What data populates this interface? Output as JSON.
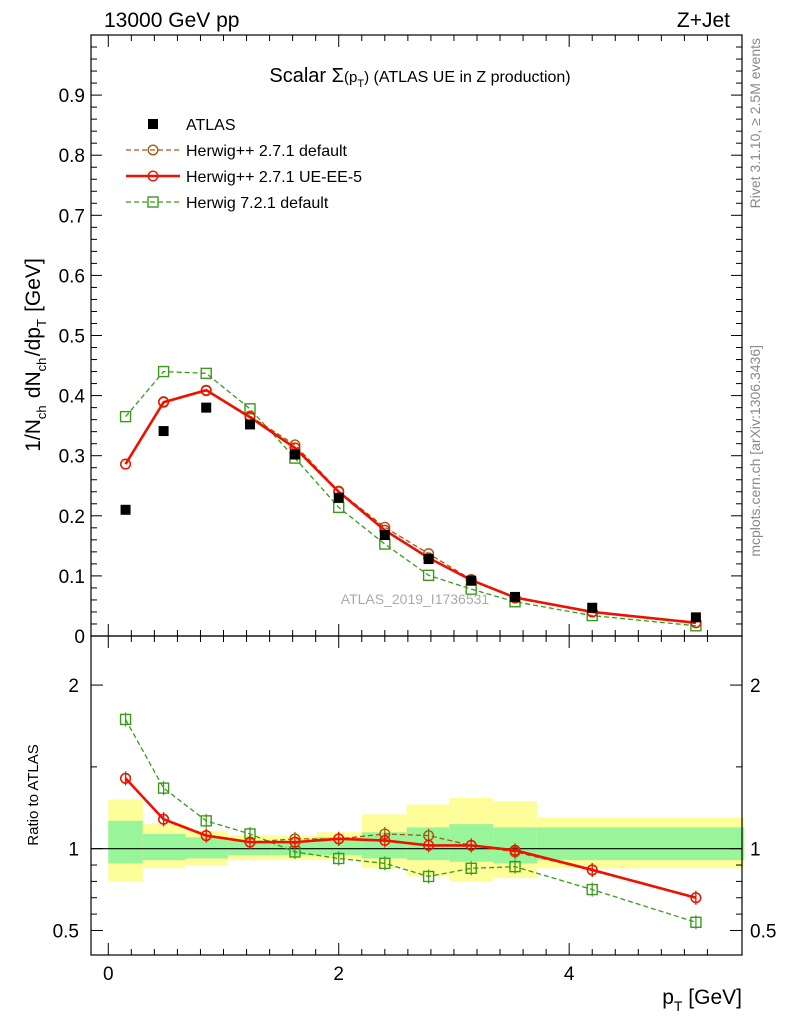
{
  "header": {
    "left": "13000 GeV pp",
    "right": "Z+Jet"
  },
  "side": {
    "rivet": "Rivet 3.1.10, ≥ 2.5M events",
    "mcplots": "mcplots.cern.ch [arXiv:1306.3436]"
  },
  "watermark": "ATLAS_2019_I1736531",
  "colors": {
    "atlas": "#000000",
    "herwigpp_default": "#a05a10",
    "herwigpp_ueee5": "#ee1100",
    "herwig721": "#3a9a1a",
    "band_inner": "#99f599",
    "band_outer": "#fdfd99"
  },
  "chart_data": [
    {
      "type": "line",
      "title": "Scalar Σ(p_T) (ATLAS UE in Z production)",
      "ylabel": "1/N_ch dN_ch/dp_T [GeV]",
      "xlim": [
        -0.15,
        5.5
      ],
      "ylim": [
        0,
        1.0
      ],
      "yticks": [
        0,
        0.1,
        0.2,
        0.3,
        0.4,
        0.5,
        0.6,
        0.7,
        0.8,
        0.9
      ],
      "yticklabels": [
        "0",
        "0.1",
        "0.2",
        "0.3",
        "0.4",
        "0.5",
        "0.6",
        "0.7",
        "0.8",
        "0.9"
      ],
      "legend_position": "top-left",
      "x": [
        0.15,
        0.48,
        0.85,
        1.23,
        1.62,
        2.0,
        2.4,
        2.78,
        3.15,
        3.53,
        4.2,
        5.1
      ],
      "series": [
        {
          "name": "ATLAS",
          "style": "marker",
          "values": [
            0.21,
            0.341,
            0.38,
            0.352,
            0.302,
            0.23,
            0.168,
            0.128,
            0.092,
            0.065,
            0.047,
            0.031
          ]
        },
        {
          "name": "Herwig++ 2.7.1 default",
          "style": "dashed-circle",
          "values": [
            0.286,
            0.39,
            0.408,
            0.366,
            0.318,
            0.241,
            0.181,
            0.137,
            0.094,
            0.063,
            0.04,
            0.022
          ]
        },
        {
          "name": "Herwig++ 2.7.1 UE-EE-5",
          "style": "solid-circle",
          "values": [
            0.286,
            0.389,
            0.409,
            0.364,
            0.313,
            0.24,
            0.176,
            0.13,
            0.093,
            0.064,
            0.04,
            0.022
          ]
        },
        {
          "name": "Herwig 7.2.1 default",
          "style": "dashed-square",
          "values": [
            0.365,
            0.44,
            0.437,
            0.378,
            0.296,
            0.214,
            0.153,
            0.101,
            0.078,
            0.057,
            0.034,
            0.017
          ]
        }
      ]
    },
    {
      "type": "line",
      "ylabel": "Ratio to ATLAS",
      "xlabel": "p_T [GeV]",
      "xlim": [
        -0.15,
        5.5
      ],
      "ylim": [
        0.35,
        2.3
      ],
      "yticks": [
        0.5,
        1,
        2
      ],
      "yticklabels": [
        "0.5",
        "1",
        "2"
      ],
      "xticks": [
        0,
        2,
        4
      ],
      "xticklabels": [
        "0",
        "2",
        "4"
      ],
      "x": [
        0.15,
        0.48,
        0.85,
        1.23,
        1.62,
        2.0,
        2.4,
        2.78,
        3.15,
        3.53,
        4.2,
        5.1
      ],
      "bins": [
        [
          0.0,
          0.3
        ],
        [
          0.3,
          0.67
        ],
        [
          0.67,
          1.04
        ],
        [
          1.04,
          1.42
        ],
        [
          1.42,
          1.81
        ],
        [
          1.81,
          2.2
        ],
        [
          2.2,
          2.59
        ],
        [
          2.59,
          2.96
        ],
        [
          2.96,
          3.34
        ],
        [
          3.34,
          3.72
        ],
        [
          3.72,
          4.68
        ],
        [
          4.68,
          5.52
        ]
      ],
      "band_inner": [
        [
          0.91,
          1.17
        ],
        [
          0.93,
          1.09
        ],
        [
          0.94,
          1.07
        ],
        [
          0.96,
          1.05
        ],
        [
          0.96,
          1.05
        ],
        [
          0.96,
          1.07
        ],
        [
          0.94,
          1.1
        ],
        [
          0.93,
          1.13
        ],
        [
          0.92,
          1.15
        ],
        [
          0.91,
          1.13
        ],
        [
          0.93,
          1.13
        ],
        [
          0.93,
          1.13
        ]
      ],
      "band_outer": [
        [
          0.8,
          1.3
        ],
        [
          0.88,
          1.15
        ],
        [
          0.9,
          1.11
        ],
        [
          0.93,
          1.08
        ],
        [
          0.93,
          1.08
        ],
        [
          0.93,
          1.1
        ],
        [
          0.88,
          1.21
        ],
        [
          0.83,
          1.27
        ],
        [
          0.8,
          1.31
        ],
        [
          0.82,
          1.29
        ],
        [
          0.88,
          1.19
        ],
        [
          0.88,
          1.19
        ]
      ],
      "series": [
        {
          "name": "Herwig++ 2.7.1 default",
          "style": "dashed-circle",
          "values": [
            1.43,
            1.18,
            1.08,
            1.04,
            1.06,
            1.06,
            1.09,
            1.08,
            1.02,
            0.98,
            0.87,
            0.7
          ]
        },
        {
          "name": "Herwig++ 2.7.1 UE-EE-5",
          "style": "solid-circle",
          "values": [
            1.43,
            1.18,
            1.08,
            1.04,
            1.04,
            1.06,
            1.05,
            1.02,
            1.02,
            0.99,
            0.87,
            0.7
          ]
        },
        {
          "name": "Herwig 7.2.1 default",
          "style": "dashed-square",
          "values": [
            1.79,
            1.37,
            1.17,
            1.09,
            0.98,
            0.94,
            0.91,
            0.83,
            0.88,
            0.89,
            0.75,
            0.55
          ]
        }
      ]
    }
  ]
}
